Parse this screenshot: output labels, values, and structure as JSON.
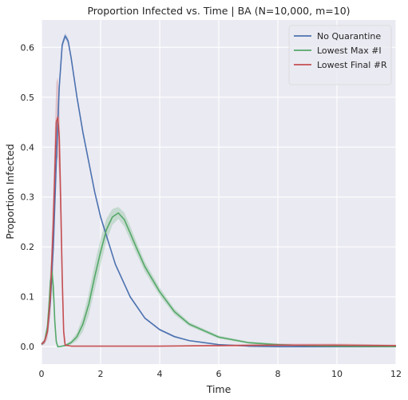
{
  "chart_data": {
    "type": "line",
    "title": "Proportion Infected vs. Time | BA (N=10,000, m=10)",
    "xlabel": "Time",
    "ylabel": "Proportion Infected",
    "xlim": [
      0,
      12
    ],
    "ylim": [
      -0.035,
      0.655
    ],
    "xticks": [
      0,
      2,
      4,
      6,
      8,
      10,
      12
    ],
    "xtick_labels": [
      "0",
      "2",
      "4",
      "6",
      "8",
      "10",
      "12"
    ],
    "yticks": [
      0.0,
      0.1,
      0.2,
      0.3,
      0.4,
      0.5,
      0.6
    ],
    "ytick_labels": [
      "0.0",
      "0.1",
      "0.2",
      "0.3",
      "0.4",
      "0.5",
      "0.6"
    ],
    "grid": true,
    "legend_position": "top-right",
    "background_color": "#eaeaf2",
    "series": [
      {
        "name": "No Quarantine",
        "color": "#4c72b0",
        "x": [
          0,
          0.1,
          0.2,
          0.3,
          0.4,
          0.5,
          0.6,
          0.7,
          0.8,
          0.9,
          1.0,
          1.2,
          1.4,
          1.6,
          1.8,
          2.0,
          2.5,
          3.0,
          3.5,
          4.0,
          4.5,
          5.0,
          6.0,
          7.0,
          8.0,
          10.0,
          12.0
        ],
        "y": [
          0.005,
          0.01,
          0.03,
          0.09,
          0.2,
          0.37,
          0.52,
          0.605,
          0.623,
          0.613,
          0.58,
          0.5,
          0.43,
          0.37,
          0.31,
          0.26,
          0.165,
          0.1,
          0.057,
          0.034,
          0.02,
          0.012,
          0.004,
          0.001,
          0.0,
          0.0,
          0.0
        ],
        "band": [
          0.003,
          0.004,
          0.006,
          0.01,
          0.012,
          0.012,
          0.01,
          0.007,
          0.006,
          0.006,
          0.006,
          0.005,
          0.005,
          0.004,
          0.004,
          0.004,
          0.003,
          0.003,
          0.002,
          0.002,
          0.002,
          0.001,
          0.001,
          0.001,
          0.0,
          0.0,
          0.0
        ]
      },
      {
        "name": "Lowest Max #I",
        "color": "#55a868",
        "x": [
          0,
          0.1,
          0.2,
          0.25,
          0.3,
          0.35,
          0.4,
          0.45,
          0.5,
          0.55,
          0.6,
          0.8,
          1.0,
          1.2,
          1.4,
          1.6,
          1.8,
          2.0,
          2.2,
          2.4,
          2.6,
          2.8,
          3.0,
          3.2,
          3.5,
          4.0,
          4.5,
          5.0,
          6.0,
          7.0,
          8.0,
          9.0,
          10.0,
          12.0
        ],
        "y": [
          0.005,
          0.01,
          0.04,
          0.08,
          0.13,
          0.15,
          0.12,
          0.05,
          0.01,
          0.0,
          0.0,
          0.002,
          0.008,
          0.02,
          0.045,
          0.085,
          0.14,
          0.19,
          0.235,
          0.26,
          0.268,
          0.255,
          0.228,
          0.2,
          0.16,
          0.11,
          0.07,
          0.045,
          0.019,
          0.008,
          0.004,
          0.002,
          0.001,
          0.0
        ],
        "band": [
          0.003,
          0.004,
          0.01,
          0.02,
          0.03,
          0.035,
          0.03,
          0.015,
          0.004,
          0.001,
          0.001,
          0.002,
          0.004,
          0.008,
          0.015,
          0.022,
          0.026,
          0.026,
          0.022,
          0.016,
          0.012,
          0.014,
          0.014,
          0.012,
          0.01,
          0.008,
          0.006,
          0.004,
          0.003,
          0.002,
          0.002,
          0.001,
          0.001,
          0.0
        ]
      },
      {
        "name": "Lowest Final #R",
        "color": "#c44e52",
        "x": [
          0,
          0.1,
          0.2,
          0.3,
          0.4,
          0.45,
          0.5,
          0.55,
          0.6,
          0.65,
          0.7,
          0.75,
          0.8,
          1.0,
          2.0,
          4.0,
          6.0,
          8.0,
          10.0,
          12.0
        ],
        "y": [
          0.005,
          0.01,
          0.03,
          0.1,
          0.25,
          0.35,
          0.45,
          0.46,
          0.42,
          0.29,
          0.14,
          0.03,
          0.003,
          0.001,
          0.001,
          0.001,
          0.002,
          0.003,
          0.003,
          0.002
        ],
        "band": [
          0.003,
          0.005,
          0.015,
          0.04,
          0.07,
          0.08,
          0.08,
          0.08,
          0.08,
          0.07,
          0.05,
          0.02,
          0.003,
          0.001,
          0.001,
          0.001,
          0.002,
          0.003,
          0.003,
          0.002
        ]
      }
    ]
  }
}
